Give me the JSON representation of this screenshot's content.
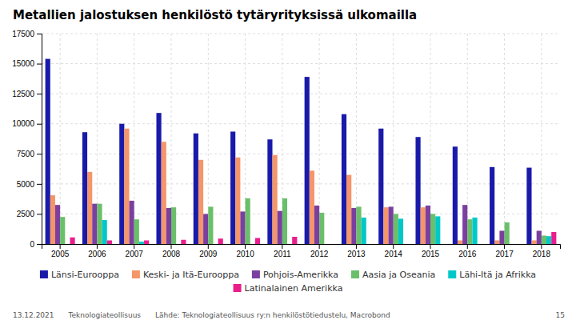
{
  "chart_data": {
    "type": "bar",
    "title": "Metallien jalostuksen henkilöstö tytäryrityksissä ulkomailla",
    "categories": [
      "2005",
      "2006",
      "2007",
      "2008",
      "2009",
      "2010",
      "2011",
      "2012",
      "2013",
      "2014",
      "2015",
      "2016",
      "2017",
      "2018"
    ],
    "series": [
      {
        "name": "Länsi-Eurooppa",
        "color": "#1a1aaa",
        "values": [
          15400,
          9300,
          10000,
          10900,
          9200,
          9350,
          8700,
          13900,
          10800,
          9600,
          8900,
          8100,
          6400,
          6350
        ]
      },
      {
        "name": "Keski- ja Itä-Eurooppa",
        "color": "#f4956a",
        "values": [
          4050,
          6000,
          9600,
          8500,
          7000,
          7200,
          7400,
          6100,
          5750,
          3050,
          3050,
          300,
          300,
          300
        ]
      },
      {
        "name": "Pohjois-Amerikka",
        "color": "#7b3fa0",
        "values": [
          3250,
          3350,
          3600,
          3000,
          2500,
          2700,
          2750,
          3200,
          3000,
          3100,
          3200,
          3250,
          1100,
          1100
        ]
      },
      {
        "name": "Aasia ja Oseania",
        "color": "#6abf6a",
        "values": [
          2250,
          3350,
          2050,
          3050,
          3100,
          3800,
          3800,
          2600,
          3100,
          2500,
          2500,
          2050,
          1800,
          700
        ]
      },
      {
        "name": "Lähi-Itä ja Afrikka",
        "color": "#00c8c8",
        "values": [
          0,
          2000,
          200,
          0,
          0,
          0,
          0,
          0,
          2200,
          2100,
          2300,
          2200,
          0,
          650
        ]
      },
      {
        "name": "Latinalainen Amerikka",
        "color": "#e91e8c",
        "values": [
          550,
          300,
          300,
          350,
          450,
          500,
          600,
          0,
          0,
          0,
          0,
          0,
          0,
          1000
        ]
      }
    ],
    "ylim": [
      0,
      17500
    ],
    "yticks": [
      0,
      2500,
      5000,
      7500,
      10000,
      12500,
      15000,
      17500
    ],
    "grid": true,
    "legend": "bottom",
    "annotations": [
      "13.12.2021",
      "Teknologiateollisuus",
      "Lähde: Teknologiateollisuus ry:n henkilöstötiedustelu, Macrobond",
      "15"
    ]
  }
}
